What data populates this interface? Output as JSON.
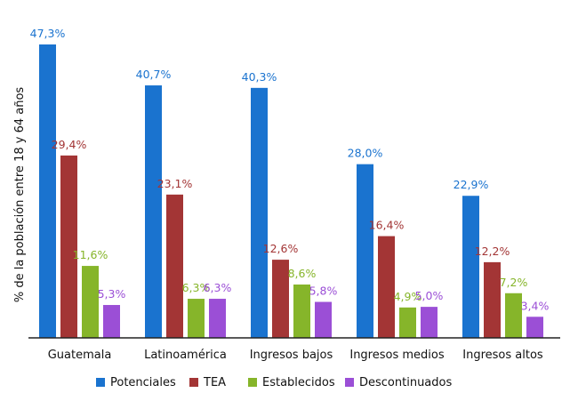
{
  "chart_data": {
    "type": "bar",
    "title": "",
    "xlabel": "",
    "ylabel": "% de la población entre 18 y 64 años",
    "ylim": [
      0,
      50
    ],
    "grid": false,
    "legend_position": "bottom",
    "categories": [
      "Guatemala",
      "Latinoamérica",
      "Ingresos bajos",
      "Ingresos medios",
      "Ingresos altos"
    ],
    "series": [
      {
        "name": "Potenciales",
        "color": "#1a73cf",
        "values": [
          47.3,
          40.7,
          40.3,
          28.0,
          22.9
        ],
        "labels": [
          "47,3%",
          "40,7%",
          "40,3%",
          "28,0%",
          "22,9%"
        ]
      },
      {
        "name": "TEA",
        "color": "#a33535",
        "values": [
          29.4,
          23.1,
          12.6,
          16.4,
          12.2
        ],
        "labels": [
          "29,4%",
          "23,1%",
          "12,6%",
          "16,4%",
          "12,2%"
        ]
      },
      {
        "name": "Establecidos",
        "color": "#86b52a",
        "values": [
          11.6,
          6.3,
          8.6,
          4.9,
          7.2
        ],
        "labels": [
          "11,6%",
          "6,3%",
          "8,6%",
          "4,9%",
          "7,2%"
        ]
      },
      {
        "name": "Descontinuados",
        "color": "#9b4fd6",
        "values": [
          5.3,
          6.3,
          5.8,
          5.0,
          3.4
        ],
        "labels": [
          "5,3%",
          "6,3%",
          "5,8%",
          "5,0%",
          "3,4%"
        ]
      }
    ]
  }
}
